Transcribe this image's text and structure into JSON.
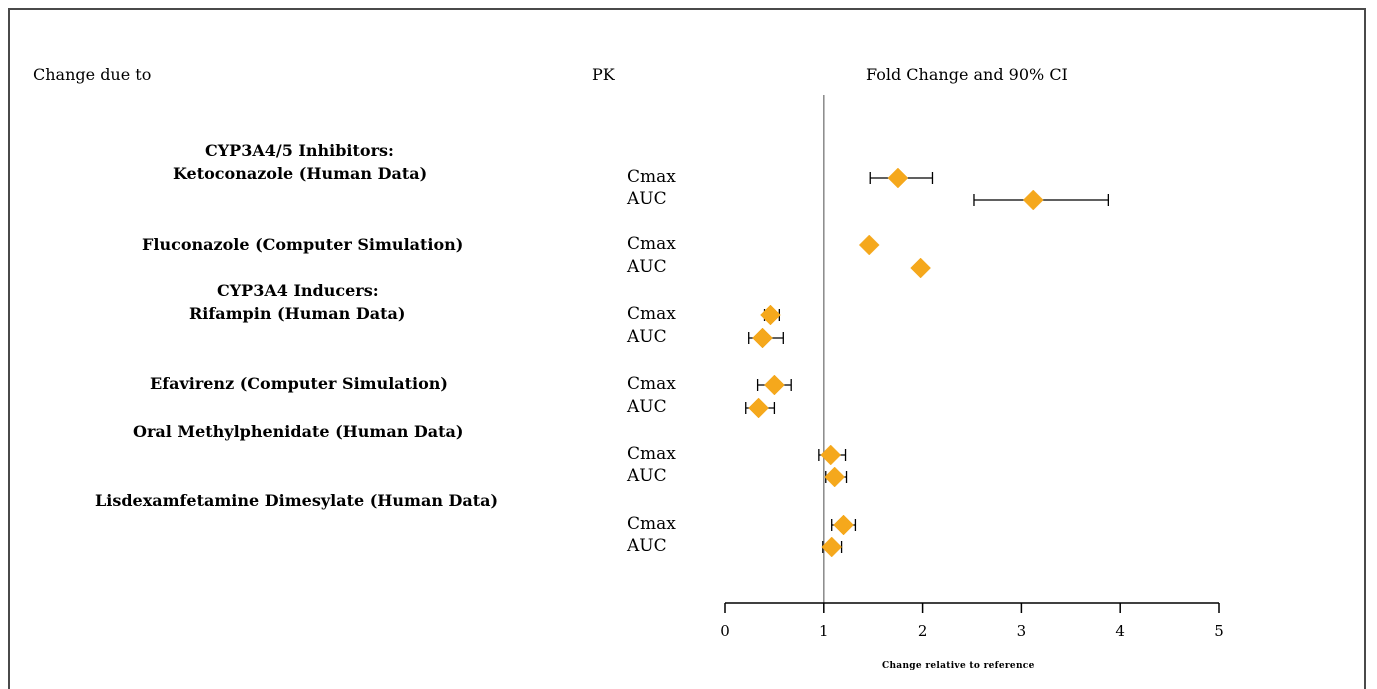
{
  "headers": {
    "change_due_to": "Change due to",
    "pk": "PK",
    "fold_change": "Fold Change and 90% CI"
  },
  "groups": [
    {
      "lines": [
        "CYP3A4/5 Inhibitors:",
        "Ketoconazole (Human Data)"
      ]
    },
    {
      "lines": [
        "Fluconazole (Computer Simulation)"
      ]
    },
    {
      "lines": [
        "CYP3A4 Inducers:",
        "Rifampin  (Human Data)"
      ]
    },
    {
      "lines": [
        "Efavirenz (Computer Simulation)"
      ]
    },
    {
      "lines": [
        "Oral Methylphenidate (Human Data)"
      ]
    },
    {
      "lines": [
        "Lisdexamfetamine Dimesylate (Human Data)"
      ]
    }
  ],
  "colors": {
    "marker": "#F5A81C",
    "ci_line": "#000000",
    "axis": "#000000",
    "reference_line": "#888888"
  },
  "chart_data": {
    "type": "scatter",
    "title": "Fold Change and 90% CI",
    "xlabel": "Change relative to reference",
    "xlim": [
      0,
      5
    ],
    "xticks": [
      0,
      1,
      2,
      3,
      4,
      5
    ],
    "reference_value": 1,
    "marker": "diamond",
    "rows": [
      {
        "group": "Ketoconazole (Human Data)",
        "pk": "Cmax",
        "estimate": 1.75,
        "lower": 1.47,
        "upper": 2.1
      },
      {
        "group": "Ketoconazole (Human Data)",
        "pk": "AUC",
        "estimate": 3.12,
        "lower": 2.52,
        "upper": 3.88
      },
      {
        "group": "Fluconazole (Computer Simulation)",
        "pk": "Cmax",
        "estimate": 1.46,
        "lower": 1.44,
        "upper": 1.48
      },
      {
        "group": "Fluconazole (Computer Simulation)",
        "pk": "AUC",
        "estimate": 1.98,
        "lower": 1.95,
        "upper": 2.01
      },
      {
        "group": "Rifampin  (Human Data)",
        "pk": "Cmax",
        "estimate": 0.46,
        "lower": 0.4,
        "upper": 0.55
      },
      {
        "group": "Rifampin  (Human Data)",
        "pk": "AUC",
        "estimate": 0.38,
        "lower": 0.24,
        "upper": 0.59
      },
      {
        "group": "Efavirenz (Computer Simulation)",
        "pk": "Cmax",
        "estimate": 0.5,
        "lower": 0.33,
        "upper": 0.67
      },
      {
        "group": "Efavirenz (Computer Simulation)",
        "pk": "AUC",
        "estimate": 0.34,
        "lower": 0.21,
        "upper": 0.5
      },
      {
        "group": "Oral Methylphenidate (Human Data)",
        "pk": "Cmax",
        "estimate": 1.07,
        "lower": 0.95,
        "upper": 1.22
      },
      {
        "group": "Oral Methylphenidate (Human Data)",
        "pk": "AUC",
        "estimate": 1.11,
        "lower": 1.02,
        "upper": 1.23
      },
      {
        "group": "Lisdexamfetamine Dimesylate (Human Data)",
        "pk": "Cmax",
        "estimate": 1.2,
        "lower": 1.08,
        "upper": 1.32
      },
      {
        "group": "Lisdexamfetamine Dimesylate (Human Data)",
        "pk": "AUC",
        "estimate": 1.08,
        "lower": 0.99,
        "upper": 1.18
      }
    ]
  }
}
